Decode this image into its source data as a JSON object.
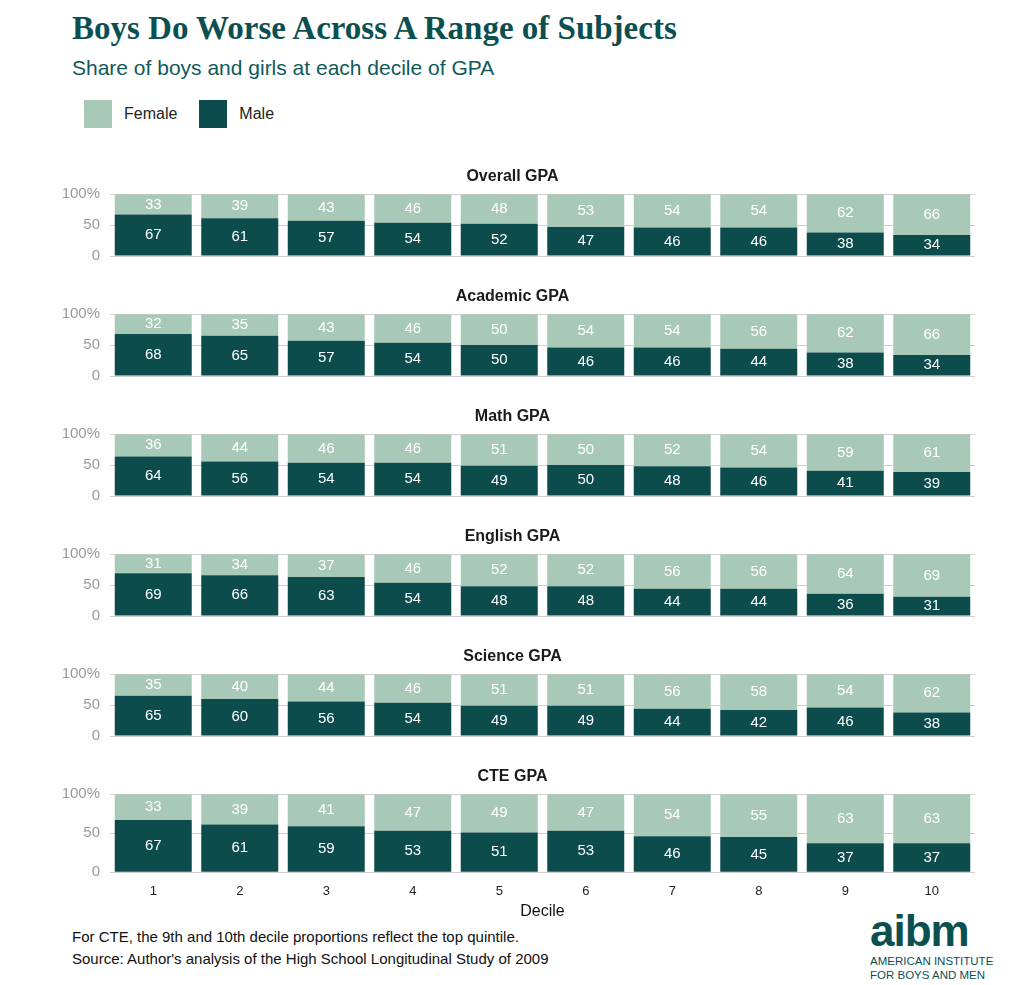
{
  "title": "Boys Do Worse Across A Range of Subjects",
  "subtitle": "Share of boys and girls at each decile of GPA",
  "notes": [
    "For CTE, the 9th and 10th decile proportions reflect the top quintile.",
    "Source: Author's analysis of the High School Longitudinal Study of 2009"
  ],
  "logo": {
    "name": "aibm",
    "text": [
      "AMERICAN INSTITUTE",
      "FOR BOYS AND MEN"
    ]
  },
  "chart_data": [
    {
      "type": "bar",
      "title": "Overall GPA",
      "legend": "top-left",
      "categories": [
        "1",
        "2",
        "3",
        "4",
        "5",
        "6",
        "7",
        "8",
        "9",
        "10"
      ],
      "series": [
        {
          "name": "Female",
          "color": "#a9c9b8",
          "values": [
            33,
            39,
            43,
            46,
            48,
            53,
            54,
            54,
            62,
            66
          ]
        },
        {
          "name": "Male",
          "color": "#0c4c4d",
          "values": [
            67,
            61,
            57,
            54,
            52,
            47,
            46,
            46,
            38,
            34
          ]
        }
      ],
      "ylim": [
        0,
        100
      ],
      "yticks": [
        0,
        50,
        {
          "value": 100,
          "label": "100%"
        }
      ],
      "stacked": true,
      "data_labels": true,
      "grid": true,
      "tick_labels": "y"
    },
    {
      "type": "bar",
      "title": "Academic GPA",
      "categories": [
        "1",
        "2",
        "3",
        "4",
        "5",
        "6",
        "7",
        "8",
        "9",
        "10"
      ],
      "series": [
        {
          "name": "Female",
          "color": "#a9c9b8",
          "values": [
            32,
            35,
            43,
            46,
            50,
            54,
            54,
            56,
            62,
            66
          ]
        },
        {
          "name": "Male",
          "color": "#0c4c4d",
          "values": [
            68,
            65,
            57,
            54,
            50,
            46,
            46,
            44,
            38,
            34
          ]
        }
      ],
      "ylim": [
        0,
        100
      ],
      "yticks": [
        0,
        50,
        {
          "value": 100,
          "label": "100%"
        }
      ],
      "stacked": true,
      "data_labels": true,
      "grid": true,
      "tick_labels": "y"
    },
    {
      "type": "bar",
      "title": "Math GPA",
      "categories": [
        "1",
        "2",
        "3",
        "4",
        "5",
        "6",
        "7",
        "8",
        "9",
        "10"
      ],
      "series": [
        {
          "name": "Female",
          "color": "#a9c9b8",
          "values": [
            36,
            44,
            46,
            46,
            51,
            50,
            52,
            54,
            59,
            61
          ]
        },
        {
          "name": "Male",
          "color": "#0c4c4d",
          "values": [
            64,
            56,
            54,
            54,
            49,
            50,
            48,
            46,
            41,
            39
          ]
        }
      ],
      "ylim": [
        0,
        100
      ],
      "yticks": [
        0,
        50,
        {
          "value": 100,
          "label": "100%"
        }
      ],
      "stacked": true,
      "data_labels": true,
      "grid": true,
      "tick_labels": "y"
    },
    {
      "type": "bar",
      "title": "English GPA",
      "categories": [
        "1",
        "2",
        "3",
        "4",
        "5",
        "6",
        "7",
        "8",
        "9",
        "10"
      ],
      "series": [
        {
          "name": "Female",
          "color": "#a9c9b8",
          "values": [
            31,
            34,
            37,
            46,
            52,
            52,
            56,
            56,
            64,
            69
          ]
        },
        {
          "name": "Male",
          "color": "#0c4c4d",
          "values": [
            69,
            66,
            63,
            54,
            48,
            48,
            44,
            44,
            36,
            31
          ]
        }
      ],
      "ylim": [
        0,
        100
      ],
      "yticks": [
        0,
        50,
        {
          "value": 100,
          "label": "100%"
        }
      ],
      "stacked": true,
      "data_labels": true,
      "grid": true,
      "tick_labels": "y"
    },
    {
      "type": "bar",
      "title": "Science GPA",
      "categories": [
        "1",
        "2",
        "3",
        "4",
        "5",
        "6",
        "7",
        "8",
        "9",
        "10"
      ],
      "series": [
        {
          "name": "Female",
          "color": "#a9c9b8",
          "values": [
            35,
            40,
            44,
            46,
            51,
            51,
            56,
            58,
            54,
            62
          ]
        },
        {
          "name": "Male",
          "color": "#0c4c4d",
          "values": [
            65,
            60,
            56,
            54,
            49,
            49,
            44,
            42,
            46,
            38
          ]
        }
      ],
      "ylim": [
        0,
        100
      ],
      "yticks": [
        0,
        50,
        {
          "value": 100,
          "label": "100%"
        }
      ],
      "stacked": true,
      "data_labels": true,
      "grid": true,
      "tick_labels": "y"
    },
    {
      "type": "bar",
      "title": "CTE GPA",
      "xlabel": "Decile",
      "categories": [
        "1",
        "2",
        "3",
        "4",
        "5",
        "6",
        "7",
        "8",
        "9",
        "10"
      ],
      "series": [
        {
          "name": "Female",
          "color": "#a9c9b8",
          "values": [
            33,
            39,
            41,
            47,
            49,
            47,
            54,
            55,
            63,
            63
          ]
        },
        {
          "name": "Male",
          "color": "#0c4c4d",
          "values": [
            67,
            61,
            59,
            53,
            51,
            53,
            46,
            45,
            37,
            37
          ]
        }
      ],
      "ylim": [
        0,
        100
      ],
      "yticks": [
        0,
        50,
        {
          "value": 100,
          "label": "100%"
        }
      ],
      "stacked": true,
      "data_labels": true,
      "grid": true
    }
  ]
}
